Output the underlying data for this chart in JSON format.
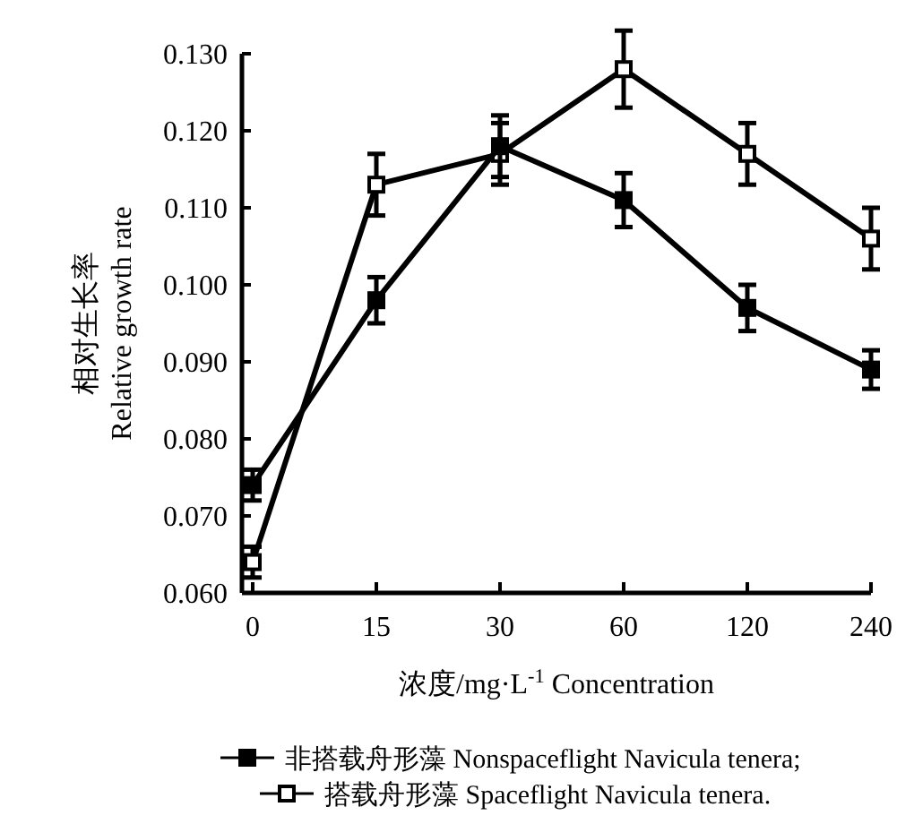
{
  "chart_data": {
    "type": "line",
    "xlabel": "浓度/mg·L$^{-1}$ Concentration",
    "ylabel": "相对生长率\nRelative growth rate",
    "categories": [
      "0",
      "15",
      "30",
      "60",
      "120",
      "240"
    ],
    "ylim": [
      0.06,
      0.13
    ],
    "yticks": [
      {
        "value": 0.06,
        "label": "0.060"
      },
      {
        "value": 0.07,
        "label": "0.070"
      },
      {
        "value": 0.08,
        "label": "0.080"
      },
      {
        "value": 0.09,
        "label": "0.090"
      },
      {
        "value": 0.1,
        "label": "0.100"
      },
      {
        "value": 0.11,
        "label": "0.110"
      },
      {
        "value": 0.12,
        "label": "0.120"
      },
      {
        "value": 0.13,
        "label": "0.130"
      }
    ],
    "series": [
      {
        "name": "非搭载舟形藻 Nonspaceflight Navicula tenera;",
        "color": "#000000",
        "marker": "square",
        "values": [
          0.074,
          0.098,
          0.118,
          0.111,
          0.097,
          0.089
        ],
        "errors": [
          0.002,
          0.003,
          0.004,
          0.0035,
          0.003,
          0.0025
        ]
      },
      {
        "name": "搭载舟形藻 Spaceflight Navicula tenera.",
        "color": "#000000",
        "marker": "square-open",
        "values": [
          0.064,
          0.113,
          0.117,
          0.128,
          0.117,
          0.106
        ],
        "errors": [
          0.002,
          0.004,
          0.004,
          0.005,
          0.004,
          0.004
        ]
      }
    ],
    "legend": "bottom",
    "grid": false,
    "line_style": "solid"
  }
}
